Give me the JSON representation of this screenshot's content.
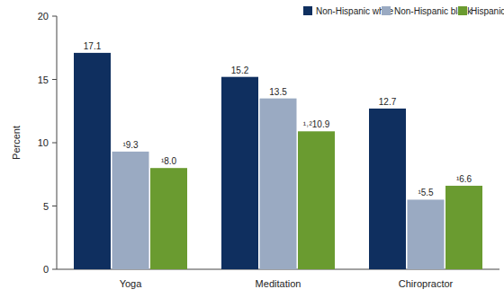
{
  "chart_data": {
    "type": "bar",
    "y_label": "Percent",
    "categories": [
      "Yoga",
      "Meditation",
      "Chiropractor"
    ],
    "series": [
      {
        "name": "Non-Hispanic white",
        "color": "#0f2f5f",
        "values": [
          17.1,
          15.2,
          12.7
        ]
      },
      {
        "name": "Non-Hispanic black",
        "color": "#9aaac2",
        "values": [
          9.3,
          13.5,
          5.5
        ],
        "value_labels": [
          "¹9.3",
          "13.5",
          "¹5.5"
        ]
      },
      {
        "name": "Hispanic",
        "color": "#6a9b30",
        "values": [
          8.0,
          10.9,
          6.6
        ],
        "value_labels": [
          "¹8.0",
          "¹˒²10.9",
          "¹6.6"
        ]
      }
    ],
    "ylim": [
      0,
      20
    ],
    "yticks": [
      0,
      5,
      10,
      15,
      20
    ],
    "grid": false,
    "legend": "top-right",
    "data_labels": true
  }
}
